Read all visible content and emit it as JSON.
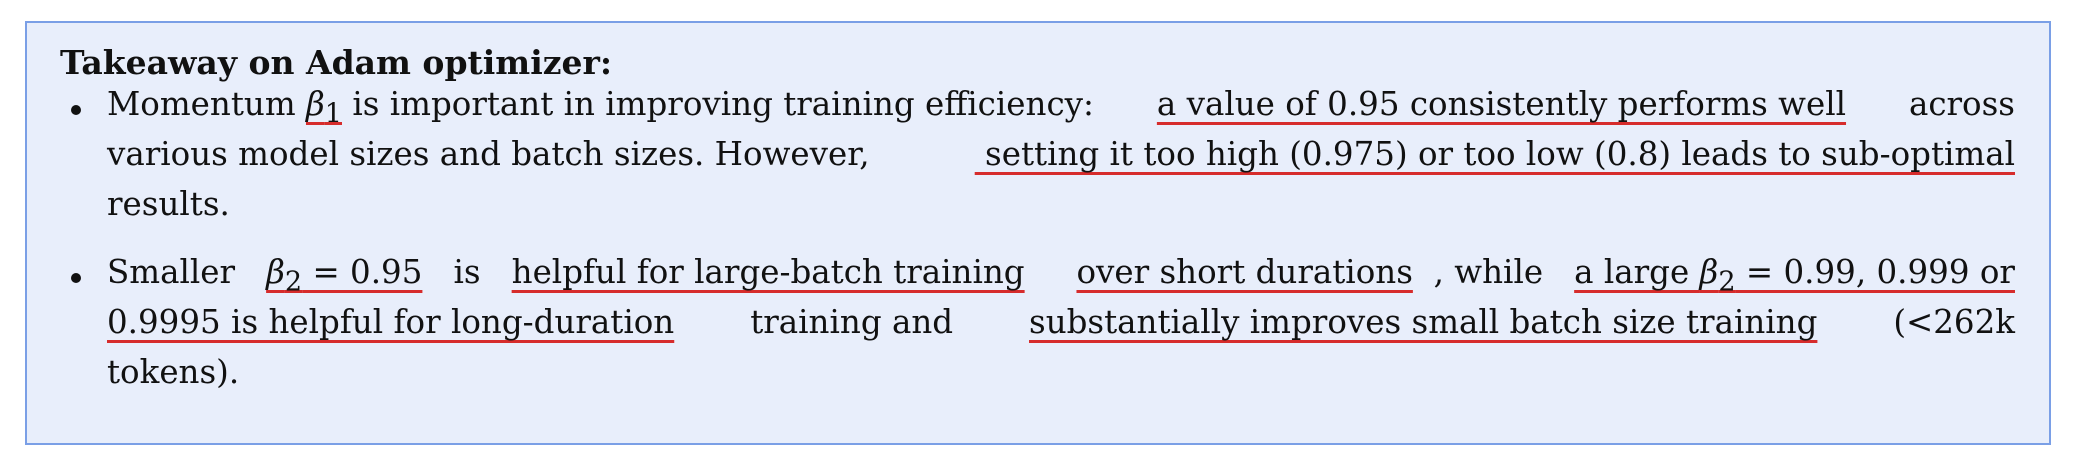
{
  "title": "Takeaway on Adam optimizer:",
  "underline_color": "#d62c2c",
  "box_background": "#e8eefb",
  "box_border": "#7a9fe6",
  "bullet1": {
    "l1_a": "Momentum ",
    "l1_beta": "β",
    "l1_sub": "1",
    "l1_b": " is important in improving training efficiency: ",
    "l1_u1": "a value of 0.95 consistently performs well",
    "l1_c": " across",
    "l2_a": "various model sizes and batch sizes. However,",
    "l2_u1": " setting it too high (0.975) or too low (0.8) leads to sub-optimal",
    "l3": "results."
  },
  "bullet2": {
    "l1_a": "Smaller ",
    "l1_u1_beta": "β",
    "l1_u1_sub": "2",
    "l1_u1_rest": " = 0.95",
    "l1_b": " is ",
    "l1_u2": "helpful for large-batch training",
    "l1_c": " ",
    "l1_u3": "over short durations",
    "l1_d": ", while ",
    "l1_u4_a": "a large ",
    "l1_u4_beta": "β",
    "l1_u4_sub": "2",
    "l1_u4_rest": " = 0.99, 0.999 or",
    "l2_u1": "0.9995 is helpful for long-duration",
    "l2_a": " training and ",
    "l2_u2": "substantially improves small batch size training",
    "l2_b": " (<262k",
    "l3": "tokens)."
  }
}
